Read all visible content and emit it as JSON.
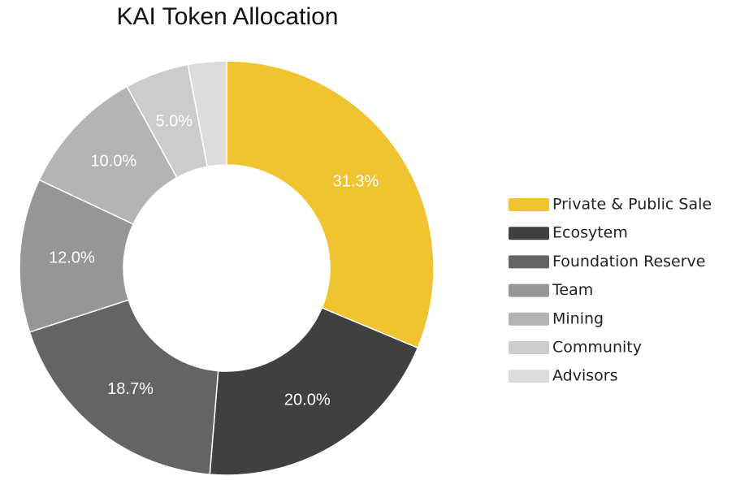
{
  "chart_data": {
    "type": "pie",
    "title": "KAI Token Allocation",
    "categories": [
      "Private & Public Sale",
      "Ecosytem",
      "Foundation Reserve",
      "Team",
      "Mining",
      "Community",
      "Advisors"
    ],
    "values": [
      31.3,
      20.0,
      18.7,
      12.0,
      10.0,
      5.0,
      3.0
    ],
    "value_labels": [
      "31.3%",
      "20.0%",
      "18.7%",
      "12.0%",
      "10.0%",
      "5.0%",
      null
    ],
    "colors": [
      "#f0c330",
      "#404040",
      "#646464",
      "#969696",
      "#b4b4b4",
      "#cccccc",
      "#dcdcdc"
    ],
    "legend": "right"
  }
}
